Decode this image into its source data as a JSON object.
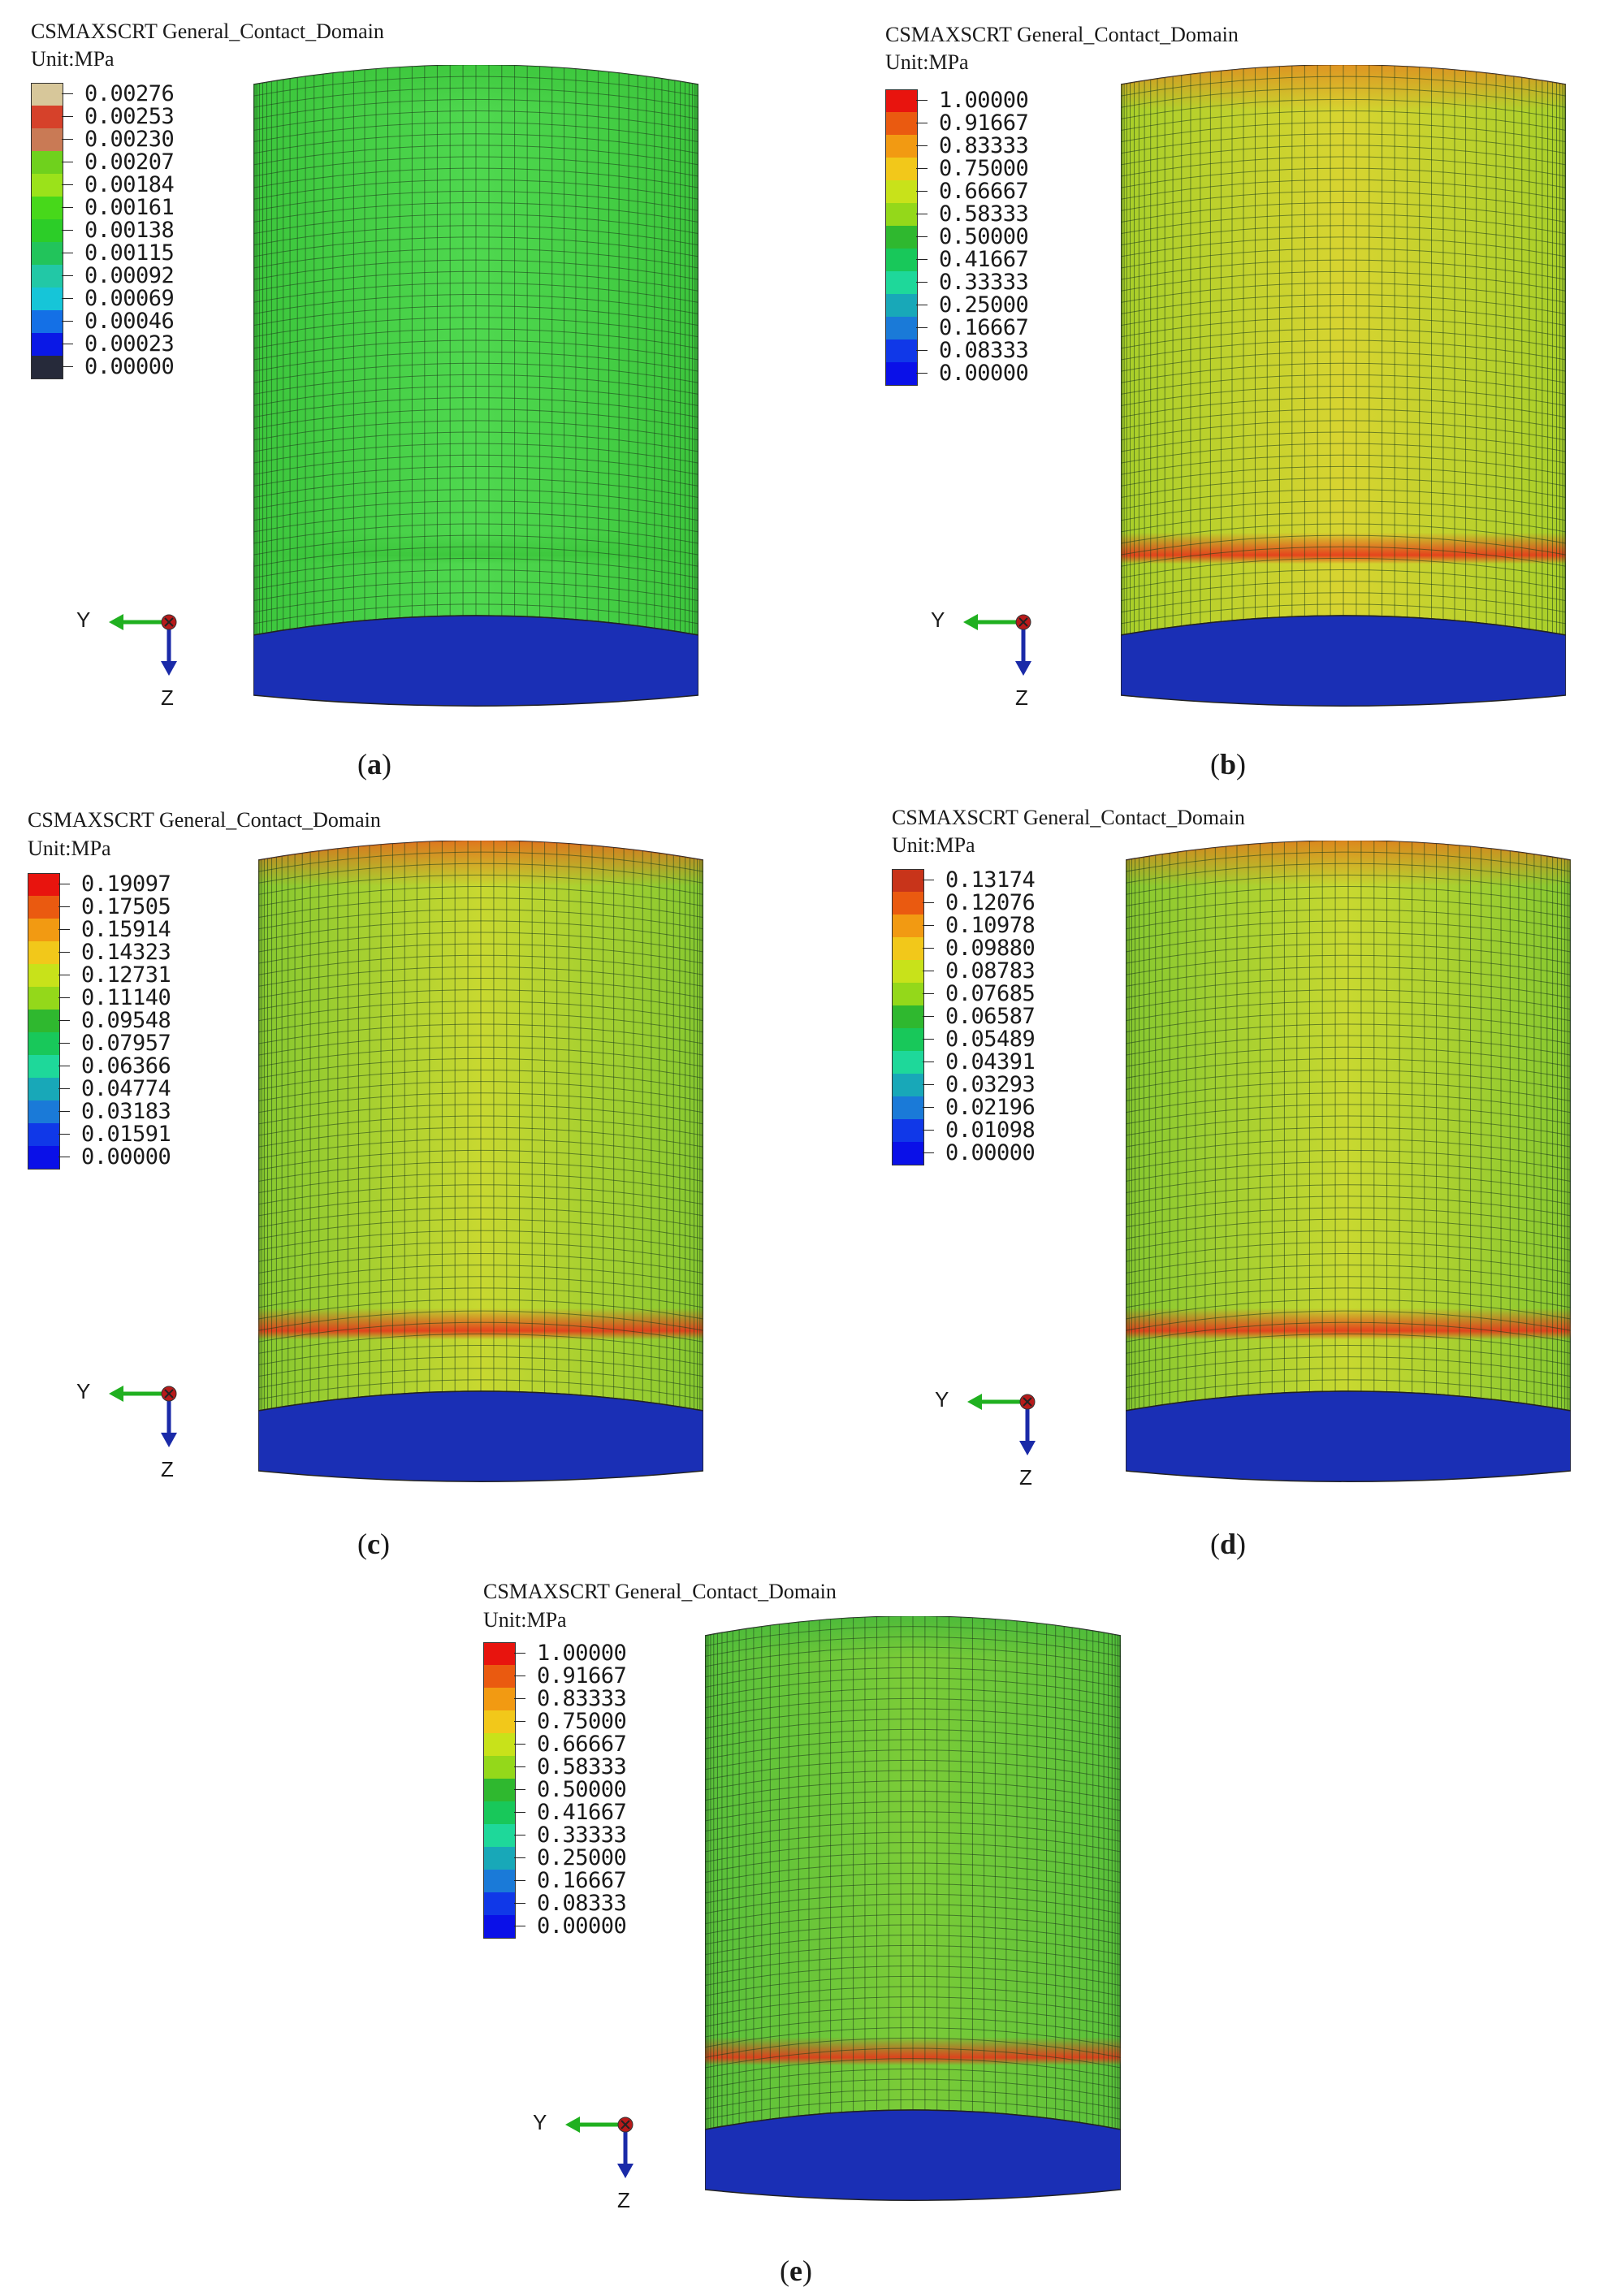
{
  "figure": {
    "panels": [
      {
        "id": "a",
        "caption_open": "(",
        "caption_letter": "a",
        "caption_close": ")",
        "title": "CSMAXSCRT General_Contact_Domain",
        "unit": "Unit:MPa",
        "legend_values": [
          "0.00276",
          "0.00253",
          "0.00230",
          "0.00207",
          "0.00184",
          "0.00161",
          "0.00138",
          "0.00115",
          "0.00092",
          "0.00069",
          "0.00046",
          "0.00023",
          "0.00000"
        ],
        "legend_colors": [
          "#d7c79a",
          "#d6412a",
          "#c97a55",
          "#6fd11d",
          "#9be21a",
          "#47d81a",
          "#2ccd28",
          "#22c45b",
          "#22c8a6",
          "#16c5d8",
          "#1470e6",
          "#0a18e6",
          "#262a3a"
        ],
        "contour_colors": {
          "base": "#3cc63c",
          "center": "#4fd84f",
          "top": "#3cc63c",
          "bottom_band": "#3cc63c",
          "base_ring": "#1a2fb5"
        },
        "axes": {
          "y": "Y",
          "z": "Z"
        }
      },
      {
        "id": "b",
        "caption_open": "(",
        "caption_letter": "b",
        "caption_close": ")",
        "title": "CSMAXSCRT General_Contact_Domain",
        "unit": "Unit:MPa",
        "legend_values": [
          "1.00000",
          "0.91667",
          "0.83333",
          "0.75000",
          "0.66667",
          "0.58333",
          "0.50000",
          "0.41667",
          "0.33333",
          "0.25000",
          "0.16667",
          "0.08333",
          "0.00000"
        ],
        "legend_colors": [
          "#e8140e",
          "#ea5a10",
          "#f29a12",
          "#f2c81a",
          "#c8e21a",
          "#94d81a",
          "#2fb82f",
          "#18c85a",
          "#1ed89a",
          "#18a8b8",
          "#1a7ad8",
          "#1038e8",
          "#0a10e8"
        ],
        "contour_colors": {
          "base": "#a8cf2a",
          "center": "#d8d430",
          "top": "#e08a20",
          "bottom_band": "#e8341a",
          "base_ring": "#1a2fb5"
        },
        "axes": {
          "y": "Y",
          "z": "Z"
        }
      },
      {
        "id": "c",
        "caption_open": "(",
        "caption_letter": "c",
        "caption_close": ")",
        "title": "CSMAXSCRT General_Contact_Domain",
        "unit": "Unit:MPa",
        "legend_values": [
          "0.19097",
          "0.17505",
          "0.15914",
          "0.14323",
          "0.12731",
          "0.11140",
          "0.09548",
          "0.07957",
          "0.06366",
          "0.04774",
          "0.03183",
          "0.01591",
          "0.00000"
        ],
        "legend_colors": [
          "#e8140e",
          "#ea5a10",
          "#f29a12",
          "#f2c81a",
          "#c8e21a",
          "#94d81a",
          "#2fb82f",
          "#18c85a",
          "#1ed89a",
          "#18a8b8",
          "#1a7ad8",
          "#1038e8",
          "#0a10e8"
        ],
        "contour_colors": {
          "base": "#86c830",
          "center": "#c8d830",
          "top": "#e4661a",
          "bottom_band": "#e8341a",
          "base_ring": "#1a2fb5"
        },
        "axes": {
          "y": "Y",
          "z": "Z"
        }
      },
      {
        "id": "d",
        "caption_open": "(",
        "caption_letter": "d",
        "caption_close": ")",
        "title": "CSMAXSCRT General_Contact_Domain",
        "unit": "Unit:MPa",
        "legend_values": [
          "0.13174",
          "0.12076",
          "0.10978",
          "0.09880",
          "0.08783",
          "0.07685",
          "0.06587",
          "0.05489",
          "0.04391",
          "0.03293",
          "0.02196",
          "0.01098",
          "0.00000"
        ],
        "legend_colors": [
          "#c8341a",
          "#ea5a10",
          "#f29a12",
          "#f2c81a",
          "#c8e21a",
          "#94d81a",
          "#2fb82f",
          "#18c85a",
          "#1ed89a",
          "#18a8b8",
          "#1a7ad8",
          "#1038e8",
          "#0a10e8"
        ],
        "contour_colors": {
          "base": "#86c830",
          "center": "#c8d830",
          "top": "#e07a1a",
          "bottom_band": "#e8341a",
          "base_ring": "#1a2fb5"
        },
        "axes": {
          "y": "Y",
          "z": "Z"
        }
      },
      {
        "id": "e",
        "caption_open": "(",
        "caption_letter": "e",
        "caption_close": ")",
        "title": "CSMAXSCRT General_Contact_Domain",
        "unit": "Unit:MPa",
        "legend_values": [
          "1.00000",
          "0.91667",
          "0.83333",
          "0.75000",
          "0.66667",
          "0.58333",
          "0.50000",
          "0.41667",
          "0.33333",
          "0.25000",
          "0.16667",
          "0.08333",
          "0.00000"
        ],
        "legend_colors": [
          "#e8140e",
          "#ea5a10",
          "#f29a12",
          "#f2c81a",
          "#c8e21a",
          "#94d81a",
          "#2fb82f",
          "#18c85a",
          "#1ed89a",
          "#18a8b8",
          "#1a7ad8",
          "#1038e8",
          "#0a10e8"
        ],
        "contour_colors": {
          "base": "#58c03a",
          "center": "#7ccc38",
          "top": "#46b83a",
          "bottom_band": "#e8341a",
          "base_ring": "#1a2fb5"
        },
        "axes": {
          "y": "Y",
          "z": "Z"
        }
      }
    ]
  }
}
